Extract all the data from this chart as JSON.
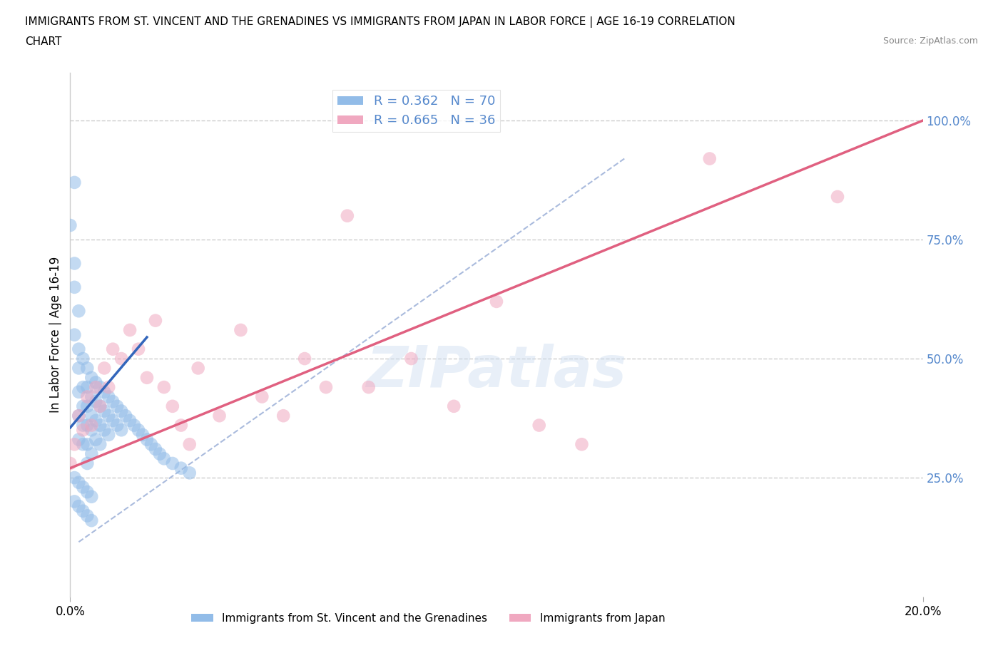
{
  "title_line1": "IMMIGRANTS FROM ST. VINCENT AND THE GRENADINES VS IMMIGRANTS FROM JAPAN IN LABOR FORCE | AGE 16-19 CORRELATION",
  "title_line2": "CHART",
  "source_text": "Source: ZipAtlas.com",
  "ylabel": "In Labor Force | Age 16-19",
  "watermark": "ZIPatlas",
  "legend_r1": "R = 0.362   N = 70",
  "legend_r2": "R = 0.665   N = 36",
  "legend_label1": "Immigrants from St. Vincent and the Grenadines",
  "legend_label2": "Immigrants from Japan",
  "blue_color": "#92bce8",
  "pink_color": "#f0a8c0",
  "blue_line_color": "#3366bb",
  "pink_line_color": "#e06080",
  "dashed_line_color": "#aabbdd",
  "grid_color": "#cccccc",
  "right_axis_color": "#5588cc",
  "blue_scatter_x": [
    0.0,
    0.001,
    0.001,
    0.001,
    0.001,
    0.002,
    0.002,
    0.002,
    0.002,
    0.002,
    0.002,
    0.003,
    0.003,
    0.003,
    0.003,
    0.003,
    0.004,
    0.004,
    0.004,
    0.004,
    0.004,
    0.004,
    0.005,
    0.005,
    0.005,
    0.005,
    0.005,
    0.006,
    0.006,
    0.006,
    0.006,
    0.007,
    0.007,
    0.007,
    0.007,
    0.008,
    0.008,
    0.008,
    0.009,
    0.009,
    0.009,
    0.01,
    0.01,
    0.011,
    0.011,
    0.012,
    0.012,
    0.013,
    0.014,
    0.015,
    0.016,
    0.017,
    0.018,
    0.019,
    0.02,
    0.021,
    0.022,
    0.024,
    0.026,
    0.028,
    0.001,
    0.002,
    0.003,
    0.004,
    0.005,
    0.001,
    0.002,
    0.003,
    0.004,
    0.005
  ],
  "blue_scatter_y": [
    0.78,
    0.87,
    0.7,
    0.65,
    0.55,
    0.6,
    0.52,
    0.48,
    0.43,
    0.38,
    0.33,
    0.5,
    0.44,
    0.4,
    0.36,
    0.32,
    0.48,
    0.44,
    0.4,
    0.36,
    0.32,
    0.28,
    0.46,
    0.42,
    0.38,
    0.35,
    0.3,
    0.45,
    0.41,
    0.37,
    0.33,
    0.44,
    0.4,
    0.36,
    0.32,
    0.43,
    0.39,
    0.35,
    0.42,
    0.38,
    0.34,
    0.41,
    0.37,
    0.4,
    0.36,
    0.39,
    0.35,
    0.38,
    0.37,
    0.36,
    0.35,
    0.34,
    0.33,
    0.32,
    0.31,
    0.3,
    0.29,
    0.28,
    0.27,
    0.26,
    0.25,
    0.24,
    0.23,
    0.22,
    0.21,
    0.2,
    0.19,
    0.18,
    0.17,
    0.16
  ],
  "pink_scatter_x": [
    0.0,
    0.001,
    0.002,
    0.003,
    0.004,
    0.005,
    0.006,
    0.007,
    0.008,
    0.009,
    0.01,
    0.012,
    0.014,
    0.016,
    0.018,
    0.02,
    0.022,
    0.024,
    0.026,
    0.028,
    0.03,
    0.035,
    0.04,
    0.045,
    0.05,
    0.055,
    0.06,
    0.065,
    0.07,
    0.08,
    0.09,
    0.1,
    0.11,
    0.12,
    0.15,
    0.18
  ],
  "pink_scatter_y": [
    0.28,
    0.32,
    0.38,
    0.35,
    0.42,
    0.36,
    0.44,
    0.4,
    0.48,
    0.44,
    0.52,
    0.5,
    0.56,
    0.52,
    0.46,
    0.58,
    0.44,
    0.4,
    0.36,
    0.32,
    0.48,
    0.38,
    0.56,
    0.42,
    0.38,
    0.5,
    0.44,
    0.8,
    0.44,
    0.5,
    0.4,
    0.62,
    0.36,
    0.32,
    0.92,
    0.84
  ],
  "blue_trend_x": [
    0.0,
    0.018
  ],
  "blue_trend_y": [
    0.355,
    0.545
  ],
  "pink_trend_x": [
    0.0,
    0.2
  ],
  "pink_trend_y": [
    0.27,
    1.0
  ],
  "dashed_trend_x": [
    0.002,
    0.13
  ],
  "dashed_trend_y": [
    0.115,
    0.92
  ],
  "xlim": [
    0.0,
    0.2
  ],
  "ylim": [
    0.0,
    1.1
  ],
  "ytick_positions": [
    0.25,
    0.5,
    0.75,
    1.0
  ],
  "ytick_labels": [
    "25.0%",
    "50.0%",
    "75.0%",
    "100.0%"
  ],
  "xtick_positions": [
    0.0,
    0.2
  ],
  "xtick_labels": [
    "0.0%",
    "20.0%"
  ]
}
